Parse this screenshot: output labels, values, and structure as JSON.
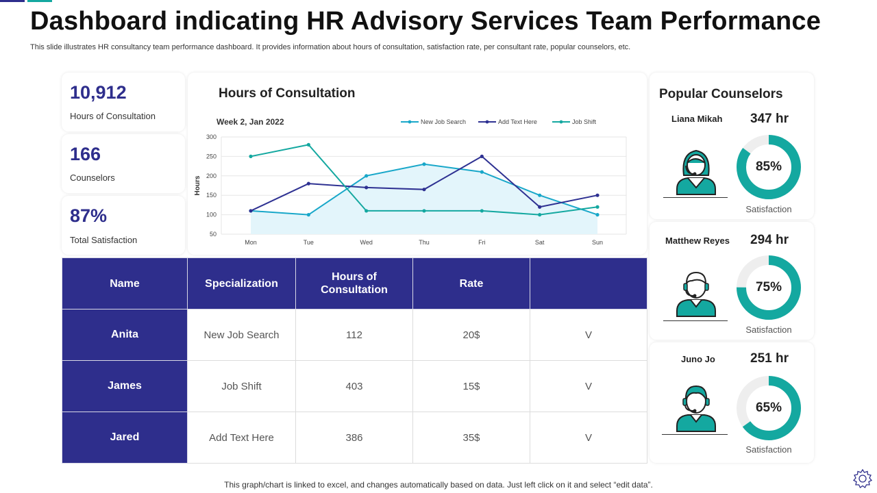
{
  "header": {
    "title": "Dashboard indicating HR Advisory Services Team Performance",
    "subtitle": "This slide illustrates HR consultancy team performance dashboard. It provides information about hours of consultation, satisfaction rate, per consultant rate, popular counselors, etc.",
    "accent_colors": [
      "#2e2e8c",
      "#14a8a0"
    ]
  },
  "kpis": [
    {
      "value": "10,912",
      "label": "Hours of Consultation"
    },
    {
      "value": "166",
      "label": "Counselors"
    },
    {
      "value": "87%",
      "label": "Total Satisfaction"
    }
  ],
  "chart_panel": {
    "title": "Hours of Consultation"
  },
  "chart_data": {
    "type": "line",
    "title": "Week 2, Jan 2022",
    "xlabel": "",
    "ylabel": "Hours",
    "categories": [
      "Mon",
      "Tue",
      "Wed",
      "Thu",
      "Fri",
      "Sat",
      "Sun"
    ],
    "ylim": [
      50,
      300
    ],
    "yticks": [
      50,
      100,
      150,
      200,
      250,
      300
    ],
    "grid": true,
    "legend": "top-right",
    "series": [
      {
        "name": "New Job Search",
        "color": "#18a7c9",
        "area": true,
        "values": [
          110,
          100,
          200,
          230,
          210,
          150,
          100
        ]
      },
      {
        "name": "Add Text Here",
        "color": "#2e3192",
        "area": false,
        "values": [
          110,
          180,
          170,
          165,
          250,
          120,
          150
        ]
      },
      {
        "name": "Job Shift",
        "color": "#14a8a0",
        "area": false,
        "values": [
          250,
          280,
          110,
          110,
          110,
          100,
          120
        ]
      }
    ]
  },
  "table": {
    "header_color": "#2e2e8c",
    "headers": [
      "Name",
      "Specialization",
      "Hours of Consultation",
      "Rate",
      ""
    ],
    "rows": [
      {
        "name": "Anita",
        "specialization": "New Job Search",
        "hours": "112",
        "rate": "20$",
        "mark": "V"
      },
      {
        "name": "James",
        "specialization": "Job Shift",
        "hours": "403",
        "rate": "15$",
        "mark": "V"
      },
      {
        "name": "Jared",
        "specialization": "Add Text Here",
        "hours": "386",
        "rate": "35$",
        "mark": "V"
      }
    ]
  },
  "counselors": {
    "title": "Popular Counselors",
    "ring_color": "#14a8a0",
    "ring_track_color": "#eeeeee",
    "items": [
      {
        "name": "Liana Mikah",
        "hours": "347 hr",
        "satisfaction_pct": 85,
        "satisfaction_text": "85%",
        "satisfaction_label": "Satisfaction",
        "icon": "female-support-agent-icon"
      },
      {
        "name": "Matthew Reyes",
        "hours": "294 hr",
        "satisfaction_pct": 75,
        "satisfaction_text": "75%",
        "satisfaction_label": "Satisfaction",
        "icon": "male-support-agent-icon"
      },
      {
        "name": "Juno Jo",
        "hours": "251 hr",
        "satisfaction_pct": 65,
        "satisfaction_text": "65%",
        "satisfaction_label": "Satisfaction",
        "icon": "support-agent-icon"
      }
    ]
  },
  "footer": {
    "note": "This graph/chart is linked to excel,  and changes automatically based on data. Just left click on it and select “edit data”.",
    "icon": "gear-icon"
  }
}
